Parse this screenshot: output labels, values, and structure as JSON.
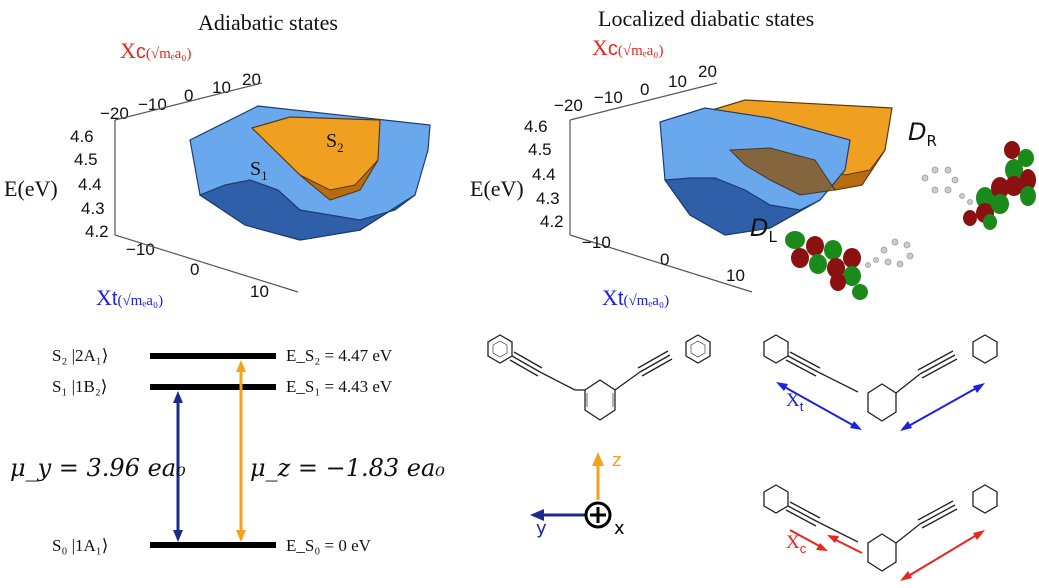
{
  "panels": {
    "adiabatic": {
      "title": "Adiabatic states",
      "xc_label": "X",
      "xc_sub": "c",
      "xc_unit": "(√mₑa₀)",
      "xt_label": "X",
      "xt_sub": "t",
      "xt_unit": "(√mₑa₀)",
      "e_label": "E(eV)",
      "e_ticks": [
        "4.6",
        "4.5",
        "4.4",
        "4.3",
        "4.2"
      ],
      "xc_ticks": [
        "−20",
        "−10",
        "0",
        "10",
        "20"
      ],
      "xt_ticks": [
        "−10",
        "0",
        "10"
      ],
      "s1": "S",
      "s1_sub": "1",
      "s2": "S",
      "s2_sub": "2"
    },
    "diabatic": {
      "title": "Localized diabatic states",
      "xc_label": "X",
      "xc_sub": "c",
      "xc_unit": "(√mₑa₀)",
      "xt_label": "X",
      "xt_sub": "t",
      "xt_unit": "(√mₑa₀)",
      "e_label": "E(eV)",
      "e_ticks": [
        "4.6",
        "4.5",
        "4.4",
        "4.3",
        "4.2"
      ],
      "xc_ticks": [
        "−20",
        "−10",
        "0",
        "10",
        "20"
      ],
      "xt_ticks": [
        "−10",
        "0",
        "10"
      ],
      "dr": "D",
      "dr_sub": "R",
      "dl": "D",
      "dl_sub": "L"
    }
  },
  "levels": {
    "s2_state": "S₂ |2A₁⟩",
    "s1_state": "S₁ |1B₂⟩",
    "s0_state": "S₀ |1A₁⟩",
    "e_s2": "E_S₂ = 4.47 eV",
    "e_s1": "E_S₁ = 4.43 eV",
    "e_s0": "E_S₀ = 0 eV",
    "mu_y": "μ_y = 3.96 ea₀",
    "mu_z": "μ_z = −1.83 ea₀"
  },
  "molecule": {
    "z_label": "z",
    "y_label": "y",
    "x_label": "x",
    "xt_label": "X",
    "xt_sub": "t",
    "xc_label": "X",
    "xc_sub": "c"
  },
  "colors": {
    "red": "#e8261c",
    "blue": "#1c22e0",
    "orange": "#f5a21c",
    "navy": "#1b2a8c",
    "surface_blue": "#6aa8ee",
    "surface_orange": "#f0a020"
  }
}
